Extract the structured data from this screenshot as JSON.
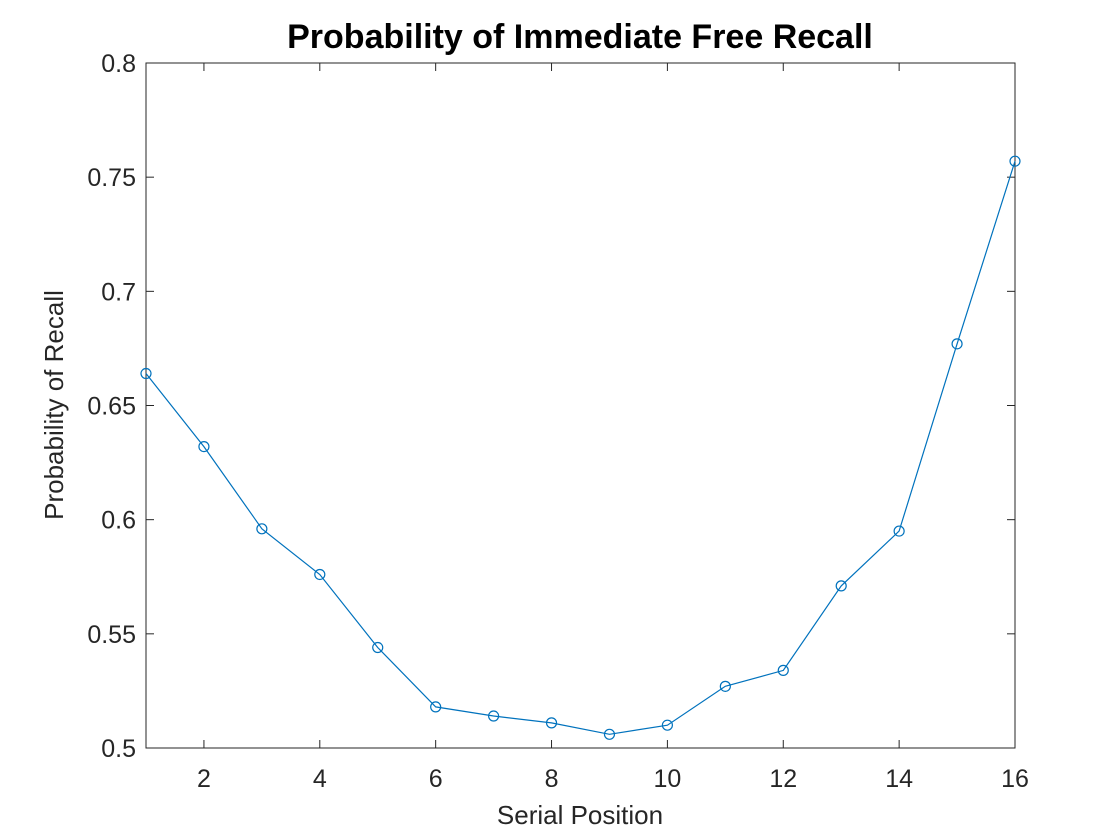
{
  "chart_data": {
    "type": "line",
    "title": "Probability of Immediate Free Recall",
    "xlabel": "Serial Position",
    "ylabel": "Probability of Recall",
    "xlim": [
      1,
      16
    ],
    "ylim": [
      0.5,
      0.8
    ],
    "x_ticks": [
      2,
      4,
      6,
      8,
      10,
      12,
      14,
      16
    ],
    "x_tick_labels": [
      "2",
      "4",
      "6",
      "8",
      "10",
      "12",
      "14",
      "16"
    ],
    "y_ticks": [
      0.5,
      0.55,
      0.6,
      0.65,
      0.7,
      0.75,
      0.8
    ],
    "y_tick_labels": [
      "0.5",
      "0.55",
      "0.6",
      "0.65",
      "0.7",
      "0.75",
      "0.8"
    ],
    "grid": false,
    "series": [
      {
        "color": "#0072BD",
        "marker": "circle",
        "x": [
          1,
          2,
          3,
          4,
          5,
          6,
          7,
          8,
          9,
          10,
          11,
          12,
          13,
          14,
          15,
          16
        ],
        "y": [
          0.664,
          0.632,
          0.596,
          0.576,
          0.544,
          0.518,
          0.514,
          0.511,
          0.506,
          0.51,
          0.527,
          0.534,
          0.571,
          0.595,
          0.677,
          0.757
        ]
      }
    ]
  }
}
